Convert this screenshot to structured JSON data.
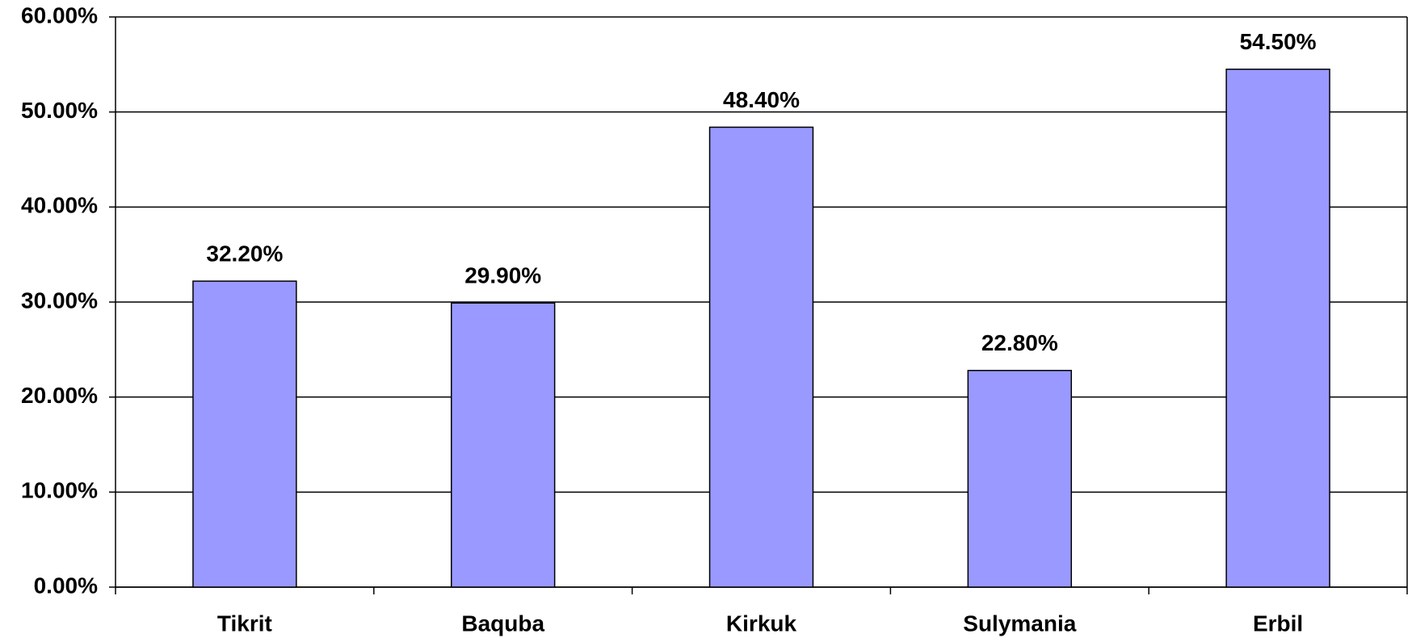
{
  "chart_data": {
    "type": "bar",
    "categories": [
      "Tikrit",
      "Baquba",
      "Kirkuk",
      "Sulymania",
      "Erbil"
    ],
    "values": [
      32.2,
      29.9,
      48.4,
      22.8,
      54.5
    ],
    "value_labels": [
      "32.20%",
      "29.90%",
      "48.40%",
      "22.80%",
      "54.50%"
    ],
    "color": "#9999ff",
    "ylim": [
      0,
      60
    ],
    "yticks": [
      {
        "value": 0,
        "label": "0.00%"
      },
      {
        "value": 10,
        "label": "10.00%"
      },
      {
        "value": 20,
        "label": "20.00%"
      },
      {
        "value": 30,
        "label": "30.00%"
      },
      {
        "value": 40,
        "label": "40.00%"
      },
      {
        "value": 50,
        "label": "50.00%"
      },
      {
        "value": 60,
        "label": "60.00%"
      }
    ],
    "grid": true
  }
}
